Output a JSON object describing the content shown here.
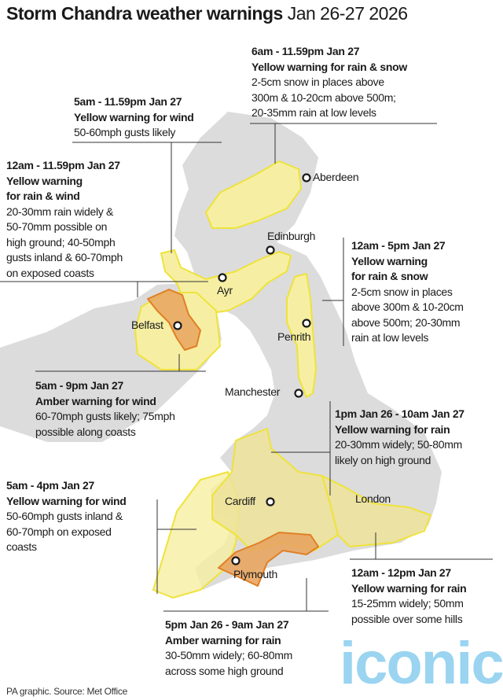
{
  "title": {
    "main": "Storm Chandra weather warnings",
    "dates": "Jan 26-27 2026"
  },
  "colors": {
    "land": "#dcdcdc",
    "yellow_fill": "#f6efa3",
    "yellow_stroke": "#efe33a",
    "amber_fill": "#e8a560",
    "amber_stroke": "#e07f25"
  },
  "warnings": [
    {
      "time": "6am - 11.59pm Jan 27",
      "heading": "Yellow warning for rain & snow",
      "details": [
        "2-5cm snow in places above",
        "300m & 10-20cm above 500m;",
        "20-35mm rain at low levels"
      ]
    },
    {
      "time": "5am - 11.59pm Jan 27",
      "heading": "Yellow warning for wind",
      "details": [
        "50-60mph gusts likely"
      ]
    },
    {
      "time": "12am - 11.59pm Jan 27",
      "heading": "Yellow warning for rain & wind",
      "heading_lines": [
        "Yellow warning",
        "for rain & wind"
      ],
      "details": [
        "20-30mm rain widely &",
        "50-70mm possible on",
        "high ground; 40-50mph",
        "gusts inland & 60-70mph",
        "on exposed coasts"
      ]
    },
    {
      "time": "12am - 5pm Jan 27",
      "heading_lines": [
        "Yellow warning",
        "for rain & snow"
      ],
      "details": [
        "2-5cm snow in places",
        "above 300m & 10-20cm",
        "above 500m; 20-30mm",
        "rain at low levels"
      ]
    },
    {
      "time": "5am - 9pm Jan 27",
      "heading": "Amber warning for wind",
      "details": [
        "60-70mph gusts likely; 75mph",
        "possible along coasts"
      ]
    },
    {
      "time": "1pm Jan 26 - 10am Jan 27",
      "heading": "Yellow warning for rain",
      "details": [
        "20-30mm widely; 50-80mm",
        "likely on high ground"
      ]
    },
    {
      "time": "5am - 4pm Jan 27",
      "heading": "Yellow warning for wind",
      "details": [
        "50-60mph gusts inland &",
        "60-70mph on exposed",
        "coasts"
      ]
    },
    {
      "time": "12am - 12pm Jan 27",
      "heading": "Yellow warning for rain",
      "details": [
        "15-25mm widely; 50mm",
        "possible over some hills"
      ]
    },
    {
      "time": "5pm Jan 26 - 9am Jan 27",
      "heading": "Amber warning for rain",
      "details": [
        "30-50mm widely; 60-80mm",
        "across some high ground"
      ]
    }
  ],
  "cities": [
    "Aberdeen",
    "Edinburgh",
    "Ayr",
    "Belfast",
    "Penrith",
    "Manchester",
    "Cardiff",
    "London",
    "Plymouth"
  ],
  "source": "PA graphic. Source: Met Office",
  "watermark": "iconic"
}
